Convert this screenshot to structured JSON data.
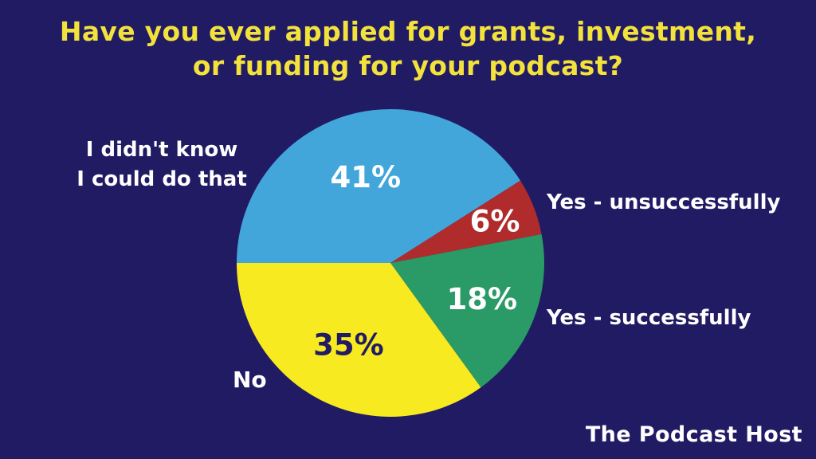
{
  "title": {
    "line1": "Have you ever applied for grants, investment,",
    "line2": "or funding for your podcast?"
  },
  "footer": {
    "brand": "The Podcast Host"
  },
  "colors": {
    "background": "#211B64",
    "title": "#F2E23B",
    "label_text": "#FFFFFF"
  },
  "chart_data": {
    "type": "pie",
    "title": "Have you ever applied for grants, investment, or funding for your podcast?",
    "legend_position": "around-pie",
    "start_angle_deg_from_top_clockwise": 270,
    "center": [
      490,
      330
    ],
    "radius": 193,
    "slices": [
      {
        "id": "didnt-know",
        "label": "I didn't know I could do that",
        "label_lines": [
          "I didn't know",
          "I could do that"
        ],
        "value": 41,
        "color": "#42A6DB",
        "value_color": "#FFFFFF",
        "label_r": 0.58
      },
      {
        "id": "yes-unsuccessfully",
        "label": "Yes - unsuccessfully",
        "value": 6,
        "color": "#B02C2C",
        "value_color": "#FFFFFF",
        "label_r": 0.73
      },
      {
        "id": "yes-successfully",
        "label": "Yes - successfully",
        "value": 18,
        "color": "#2A9A67",
        "value_color": "#FFFFFF",
        "label_r": 0.64
      },
      {
        "id": "no",
        "label": "No",
        "value": 35,
        "color": "#F7EA21",
        "value_color": "#211B64",
        "label_r": 0.6
      }
    ]
  }
}
